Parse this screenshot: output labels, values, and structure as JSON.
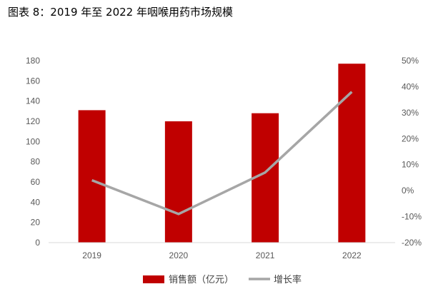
{
  "figure": {
    "title": "图表 8：2019 年至 2022 年咽喉用药市场规模"
  },
  "chart_data": {
    "type": "bar",
    "categories": [
      "2019",
      "2020",
      "2021",
      "2022"
    ],
    "series": [
      {
        "name": "销售额（亿元）",
        "type": "bar",
        "axis": "left",
        "color": "#c00000",
        "values": [
          131,
          120,
          128,
          177
        ]
      },
      {
        "name": "增长率",
        "type": "line",
        "axis": "right",
        "color": "#a6a6a6",
        "values": [
          0.04,
          -0.09,
          0.07,
          0.38
        ]
      }
    ],
    "y_left": {
      "min": 0,
      "max": 180,
      "step": 20,
      "ticks": [
        "0",
        "20",
        "40",
        "60",
        "80",
        "100",
        "120",
        "140",
        "160",
        "180"
      ]
    },
    "y_right": {
      "min": -0.2,
      "max": 0.5,
      "step": 0.1,
      "ticks": [
        "-20%",
        "-10%",
        "0%",
        "10%",
        "20%",
        "30%",
        "40%",
        "50%"
      ]
    },
    "grid": false,
    "legend_position": "bottom-center"
  }
}
